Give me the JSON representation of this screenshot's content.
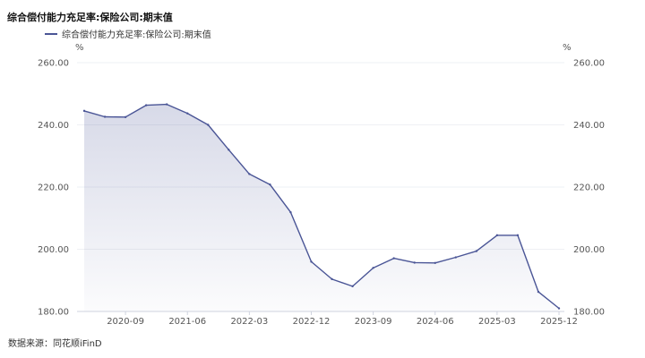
{
  "chart_data": {
    "type": "area",
    "title": "综合偿付能力充足率:保险公司:期末值",
    "series": [
      {
        "name": "综合偿付能力充足率:保险公司:期末值",
        "color": "#4a5596",
        "x": [
          "2020-03",
          "2020-06",
          "2020-09",
          "2020-12",
          "2021-03",
          "2021-06",
          "2021-09",
          "2021-12",
          "2022-03",
          "2022-06",
          "2022-09",
          "2022-12",
          "2023-03",
          "2023-06",
          "2023-09",
          "2023-12",
          "2024-03",
          "2024-06",
          "2024-09",
          "2024-12",
          "2025-03",
          "2025-06",
          "2025-09",
          "2025-12"
        ],
        "values": [
          244.5,
          242.6,
          242.5,
          246.3,
          246.6,
          243.7,
          240.0,
          232.0,
          224.2,
          220.8,
          211.9,
          196.0,
          190.4,
          188.1,
          194.0,
          197.1,
          195.7,
          195.6,
          197.4,
          199.4,
          204.5,
          204.5,
          186.3,
          181.0
        ]
      }
    ],
    "x_tick_labels": [
      "2020-09",
      "2021-06",
      "2022-03",
      "2022-12",
      "2023-09",
      "2024-06",
      "2025-03",
      "2025-12"
    ],
    "y_left_ticks": [
      "260.00",
      "240.00",
      "220.00",
      "200.00",
      "180.00"
    ],
    "y_right_ticks": [
      "260.00",
      "240.00",
      "220.00",
      "200.00",
      "180.00"
    ],
    "ylim": [
      180,
      260
    ],
    "y_unit_left": "%",
    "y_unit_right": "%",
    "grid": true,
    "legend": "top-left"
  },
  "source_text": "数据来源：同花顺iFinD"
}
